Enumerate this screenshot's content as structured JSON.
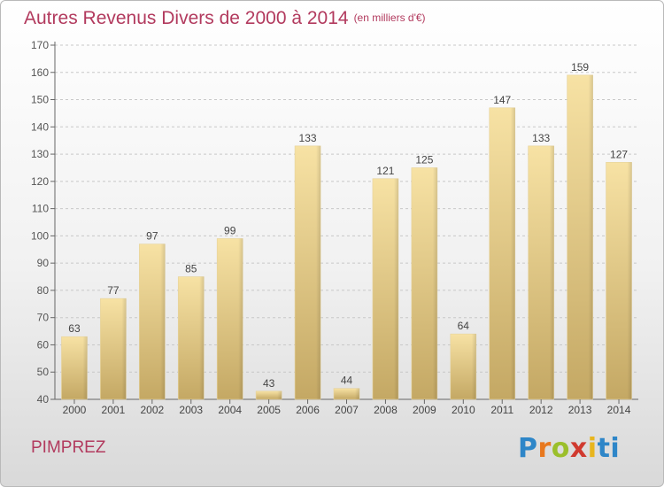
{
  "header": {
    "title": "Autres Revenus Divers de 2000 à 2014",
    "unit": "(en milliers d'€)"
  },
  "footer": {
    "place": "PIMPREZ"
  },
  "logo": {
    "text": "Proxiti",
    "colors": [
      "#2e86c8",
      "#e8781e",
      "#9bbf2b",
      "#d03a2f",
      "#e8b51e",
      "#2e86c8"
    ]
  },
  "chart_data": {
    "type": "bar",
    "title": "Autres Revenus Divers de 2000 à 2014",
    "subtitle": "(en milliers d'€)",
    "xlabel": "",
    "ylabel": "",
    "ylim": [
      40,
      170
    ],
    "yticks": [
      40,
      50,
      60,
      70,
      80,
      90,
      100,
      110,
      120,
      130,
      140,
      150,
      160,
      170
    ],
    "grid": "horizontal dashed",
    "legend": "none",
    "bar_color": "#e5c97e",
    "title_color": "#b23a5e",
    "categories": [
      "2000",
      "2001",
      "2002",
      "2003",
      "2004",
      "2005",
      "2006",
      "2007",
      "2008",
      "2009",
      "2010",
      "2011",
      "2012",
      "2013",
      "2014"
    ],
    "values": [
      63,
      77,
      97,
      85,
      99,
      43,
      133,
      44,
      121,
      125,
      64,
      147,
      133,
      159,
      127
    ]
  }
}
